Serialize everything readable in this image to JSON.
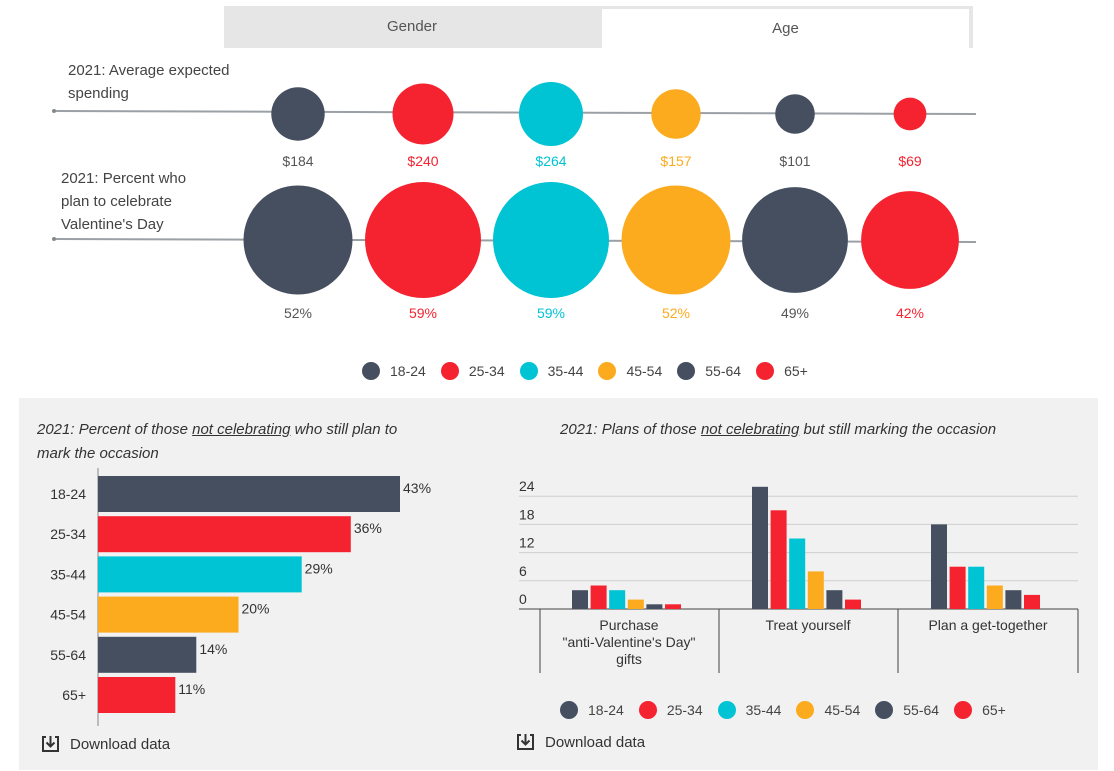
{
  "tabs": {
    "gender": "Gender",
    "age": "Age",
    "active": "Age"
  },
  "colors": {
    "18-24": "#454f60",
    "25-34": "#f4232f",
    "35-44": "#00c3d4",
    "45-54": "#fbab1d",
    "55-64": "#454f60",
    "65+": "#f4232f"
  },
  "age_groups": [
    "18-24",
    "25-34",
    "35-44",
    "45-54",
    "55-64",
    "65+"
  ],
  "top": {
    "row1_label_a": "2021: Average expected",
    "row1_label_b": "spending",
    "row2_label_a": "2021: Percent who",
    "row2_label_b": "plan to celebrate",
    "row2_label_c": "Valentine's Day"
  },
  "left_panel": {
    "title_pre": "2021: Percent of those ",
    "title_em": "not celebrating",
    "title_post": " who still plan to",
    "title_line2": "mark the occasion",
    "download": "Download data"
  },
  "right_panel": {
    "title_pre": "2021: Plans of those ",
    "title_em": "not celebrating",
    "title_post": " but still marking the occasion",
    "download": "Download data"
  },
  "chart_data": [
    {
      "type": "bubble",
      "title": "2021: Average expected spending",
      "categories": [
        "18-24",
        "25-34",
        "35-44",
        "45-54",
        "55-64",
        "65+"
      ],
      "values": [
        184,
        240,
        264,
        157,
        101,
        69
      ],
      "labels": [
        "$184",
        "$240",
        "$264",
        "$157",
        "$101",
        "$69"
      ]
    },
    {
      "type": "bubble",
      "title": "2021: Percent who plan to celebrate Valentine's Day",
      "categories": [
        "18-24",
        "25-34",
        "35-44",
        "45-54",
        "55-64",
        "65+"
      ],
      "values": [
        52,
        59,
        59,
        52,
        49,
        42
      ],
      "labels": [
        "52%",
        "59%",
        "59%",
        "52%",
        "49%",
        "42%"
      ]
    },
    {
      "type": "bar",
      "orientation": "horizontal",
      "title": "2021: Percent of those not celebrating who still plan to mark the occasion",
      "categories": [
        "18-24",
        "25-34",
        "35-44",
        "45-54",
        "55-64",
        "65+"
      ],
      "values": [
        43,
        36,
        29,
        20,
        14,
        11
      ],
      "labels": [
        "43%",
        "36%",
        "29%",
        "20%",
        "14%",
        "11%"
      ],
      "xlim": [
        0,
        43
      ]
    },
    {
      "type": "bar",
      "title": "2021: Plans of those not celebrating but still marking the occasion",
      "groups": [
        [
          "Purchase",
          "\"anti-Valentine's Day\"",
          "gifts"
        ],
        [
          "Treat yourself"
        ],
        [
          "Plan a get-together"
        ]
      ],
      "ylim": [
        0,
        24
      ],
      "yticks": [
        0,
        6,
        12,
        18,
        24
      ],
      "series": [
        {
          "name": "18-24",
          "values": [
            4,
            26,
            18
          ]
        },
        {
          "name": "25-34",
          "values": [
            5,
            21,
            9
          ]
        },
        {
          "name": "35-44",
          "values": [
            4,
            15,
            9
          ]
        },
        {
          "name": "45-54",
          "values": [
            2,
            8,
            5
          ]
        },
        {
          "name": "55-64",
          "values": [
            1,
            4,
            4
          ]
        },
        {
          "name": "65+",
          "values": [
            1,
            2,
            3
          ]
        }
      ]
    }
  ]
}
